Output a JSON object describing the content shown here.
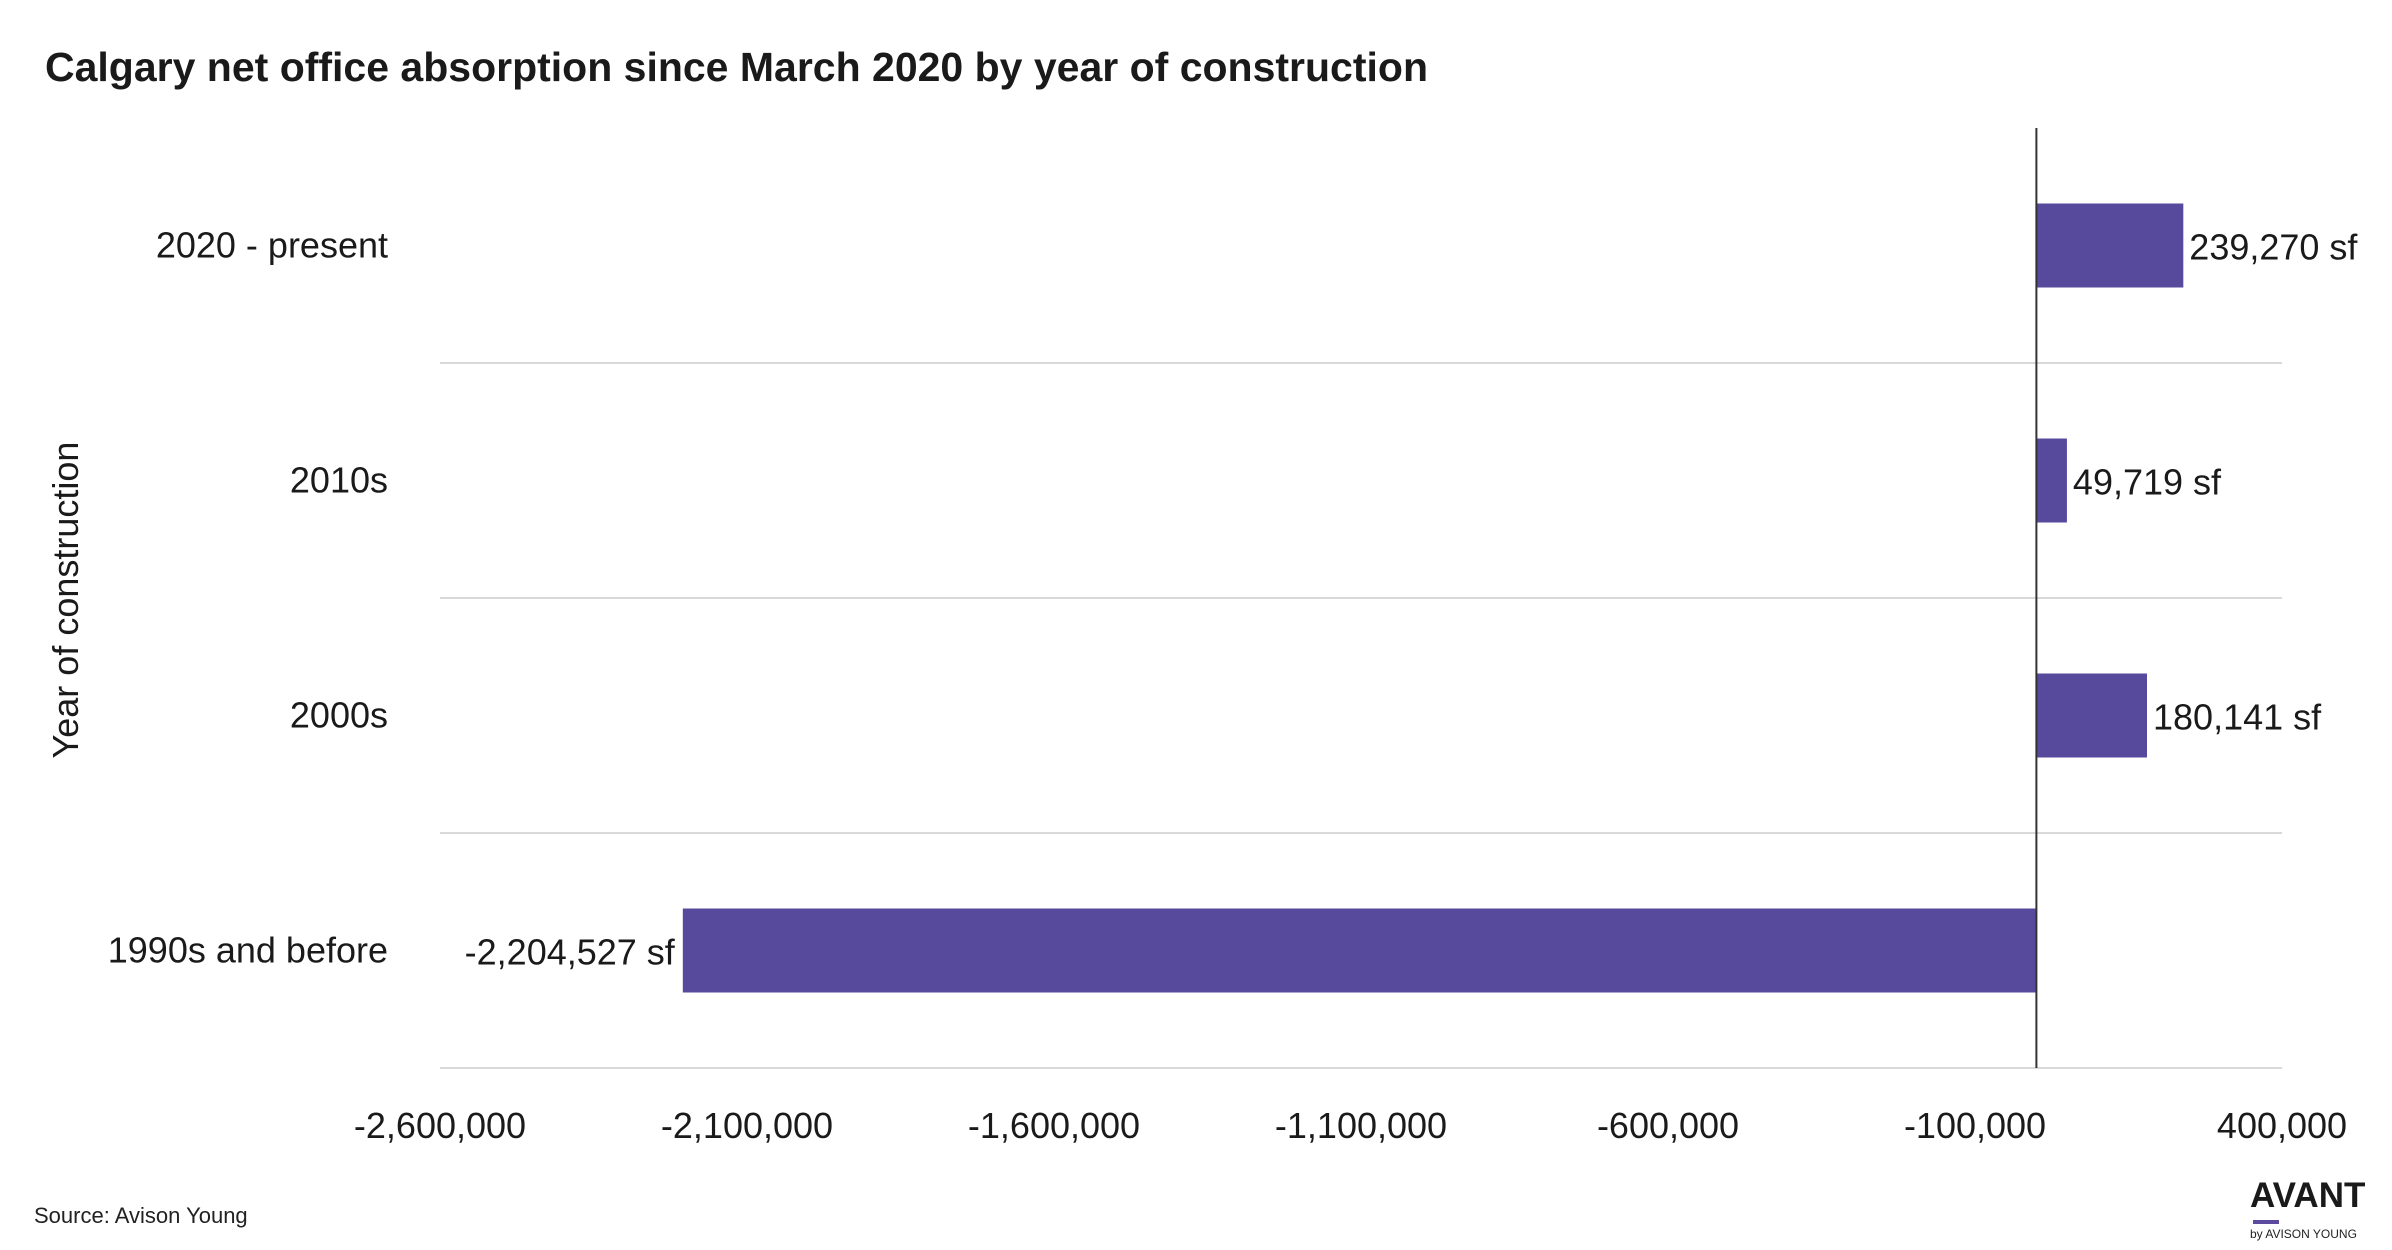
{
  "chart_data": {
    "type": "bar",
    "orientation": "horizontal",
    "title": "Calgary net office absorption since March 2020 by year of construction",
    "ylabel": "Year of construction",
    "xlabel": "",
    "categories": [
      "2020 - present",
      "2010s",
      "2000s",
      "1990s and before"
    ],
    "values": [
      239270,
      49719,
      180141,
      -2204527
    ],
    "data_labels": [
      "239,270 sf",
      "49,719 sf",
      "180,141 sf",
      "-2,204,527 sf"
    ],
    "xlim": [
      -2600000,
      400000
    ],
    "x_ticks": [
      -2600000,
      -2100000,
      -1600000,
      -1100000,
      -600000,
      -100000,
      400000
    ],
    "x_tick_labels": [
      "-2,600,000",
      "-2,100,000",
      "-1,600,000",
      "-1,100,000",
      "-600,000",
      "-100,000",
      "400,000"
    ],
    "baseline": 0,
    "grid": "horizontal category separators",
    "legend": "none",
    "bar_color": "#574a9d"
  },
  "source": "Source: Avison Young",
  "brand": {
    "name": "AVANT",
    "sub": "by AVISON YOUNG",
    "accent": "#5b4a9e"
  }
}
